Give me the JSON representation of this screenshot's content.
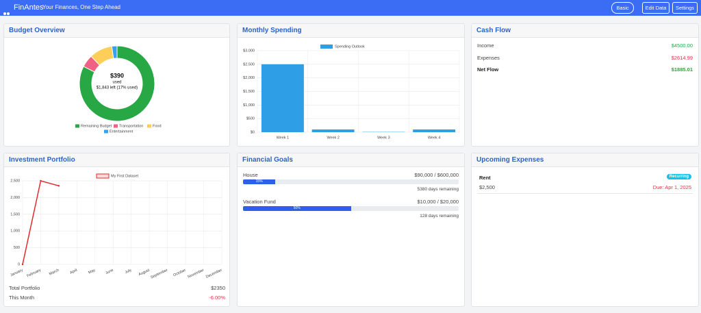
{
  "header": {
    "brand": "FinAntes",
    "tagline": "Your Finances, One Step Ahead",
    "buttons": [
      "Basic",
      "Edit Data",
      "Settings"
    ]
  },
  "cards": [
    "Budget Overview",
    "Monthly Spending",
    "Cash Flow",
    "Investment Portfolio",
    "Financial Goals",
    "Upcoming Expenses"
  ],
  "chart_data": [
    {
      "type": "doughnut",
      "categories": [
        "Remaining Budget",
        "Transportation",
        "Food",
        "Entertainment"
      ],
      "values": [
        1843,
        120,
        220,
        50
      ],
      "colors": [
        "#28a745",
        "#f06283",
        "#fdcf58",
        "#36a2eb"
      ],
      "center_value": "$390",
      "center_caption": "used",
      "center_note": "$1,843 left (17% used)"
    },
    {
      "type": "bar",
      "categories": [
        "Week 1",
        "Week 2",
        "Week 3",
        "Week 4"
      ],
      "series": [
        {
          "name": "Spending Outlook",
          "color": "#2e9ee6",
          "values": [
            2500,
            100,
            10,
            100
          ]
        }
      ],
      "ylim": [
        0,
        3000
      ],
      "grid": true,
      "yticks": [
        {
          "value": 0,
          "label": "$0"
        },
        {
          "value": 500,
          "label": "$500"
        },
        {
          "value": 1000,
          "label": "$1,000"
        },
        {
          "value": 1500,
          "label": "$1,500"
        },
        {
          "value": 2000,
          "label": "$2,000"
        },
        {
          "value": 2500,
          "label": "$2,500"
        },
        {
          "value": 3000,
          "label": "$3,000"
        }
      ]
    },
    {
      "type": "line",
      "categories": [
        "January",
        "February",
        "March",
        "April",
        "May",
        "June",
        "July",
        "August",
        "September",
        "October",
        "November",
        "December"
      ],
      "series": [
        {
          "name": "My First Dataset",
          "color": "#e0282e",
          "values": [
            0,
            2500,
            2350,
            null,
            null,
            null,
            null,
            null,
            null,
            null,
            null,
            null
          ]
        }
      ],
      "ylim": [
        0,
        2500
      ],
      "grid": true,
      "yticks": [
        0,
        500,
        {
          "value": 1000,
          "label": "1,000"
        },
        {
          "value": 1500,
          "label": "1,500"
        },
        {
          "value": 2000,
          "label": "2,000"
        },
        {
          "value": 2500,
          "label": "2,500"
        }
      ]
    }
  ],
  "cash_flow": {
    "rows": [
      {
        "label": "Income",
        "value": "$4500.00"
      },
      {
        "label": "Expenses",
        "value": "$2614.99"
      },
      {
        "label": "Net Flow",
        "value": "$1885.01"
      }
    ]
  },
  "portfolio": {
    "rows": [
      {
        "label": "Total Portfolio",
        "value": "$2350"
      },
      {
        "label": "This Month",
        "value": "-6.00%"
      }
    ]
  },
  "goals": [
    {
      "name": "House",
      "amount_label": "$90,000 / $600,000",
      "current": 90000,
      "target": 600000,
      "progress_label": "15%",
      "remaining": "5380 days remaining"
    },
    {
      "name": "Vacation Fund",
      "amount_label": "$10,000 / $20,000",
      "current": 10000,
      "target": 20000,
      "progress_label": "50%",
      "remaining": "128 days remaining"
    }
  ],
  "expenses": [
    {
      "name": "Rent",
      "badge": "Recurring",
      "amount": "$2,500",
      "due": "Due: Apr 1, 2025"
    }
  ]
}
